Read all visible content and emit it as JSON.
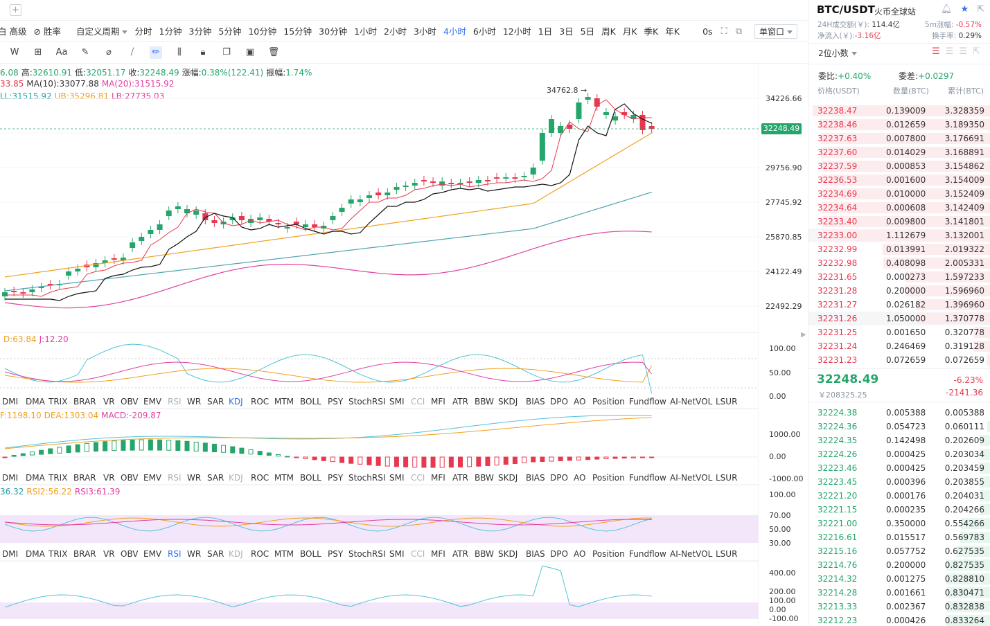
{
  "period_bar": {
    "advanced": "高级",
    "winrate": "胜率",
    "custom_period": "自定义周期",
    "periods": [
      "分时",
      "1分钟",
      "3分钟",
      "5分钟",
      "10分钟",
      "15分钟",
      "30分钟",
      "1小时",
      "2小时",
      "3小时",
      "4小时",
      "6小时",
      "12小时",
      "1日",
      "3日",
      "5日",
      "周K",
      "月K",
      "季K",
      "年K"
    ],
    "active_period": "4小时",
    "countdown": "0s",
    "single_window": "单窗口"
  },
  "ohlc": {
    "open_partial": "6.08",
    "high_label": "高:",
    "high": "32610.91",
    "low_label": "低:",
    "low": "32051.17",
    "close_label": "收:",
    "close": "32248.49",
    "change_label": "涨幅:",
    "change": "0.38%(122.41)",
    "amp_label": "振幅:",
    "amp": "1.74%"
  },
  "ma_legend": {
    "ma5_partial": "33.85",
    "ma10": "MA(10):33077.88",
    "ma20": "MA(20):31515.92"
  },
  "boll_legend": {
    "mid": "LL:31515.92",
    "ub": "UB:35296.81",
    "lb": "LB:27735.03"
  },
  "price_axis": [
    "34226.66",
    "29756.90",
    "27745.92",
    "25870.85",
    "24122.49",
    "22492.29"
  ],
  "current_price_tag": "32248.49",
  "high_marker": "34762.8",
  "kdj_legend": {
    "d": "D:63.84",
    "j": "J:12.20"
  },
  "kdj_axis": [
    "100.00",
    "50.00",
    "0.00"
  ],
  "macd_legend": {
    "dif": "F:1198.10",
    "dea": "DEA:1303.04",
    "macd": "MACD:-209.87"
  },
  "macd_axis": [
    "1000.00",
    "0.00",
    "-1000.00"
  ],
  "rsi_legend": {
    "rsi1": "36.32",
    "rsi2": "RSI2:56.22",
    "rsi3": "RSI3:61.39"
  },
  "rsi_axis": [
    "100.00",
    "70.00",
    "50.00",
    "30.00"
  ],
  "cci_axis": [
    "400.00",
    "200.00",
    "100.00",
    "0.00",
    "-100.00"
  ],
  "indicator_tabs": [
    "DMI",
    "DMA",
    "TRIX",
    "BRAR",
    "VR",
    "OBV",
    "EMV",
    "RSI",
    "WR",
    "SAR",
    "KDJ",
    "ROC",
    "MTM",
    "BOLL",
    "PSY",
    "StochRSI",
    "SMI",
    "CCI",
    "MFI",
    "ATR",
    "BBW",
    "SKDJ",
    "BIAS",
    "DPO",
    "AO",
    "Position",
    "Fundflow",
    "AI-NetVOL",
    "LSUR"
  ],
  "sidebar": {
    "pair": "BTC/USDT",
    "exchange": "火币全球站",
    "vol24_label": "24H成交额(￥):",
    "vol24": "114.4亿",
    "amp5_label": "5m涨幅:",
    "amp5": "-0.57%",
    "netflow_label": "净流入(￥):",
    "netflow": "-3.16亿",
    "turnover_label": "换手率:",
    "turnover": "0.29%",
    "decimals": "2位小数",
    "ratio_label": "委比:",
    "ratio": "+0.40%",
    "diff_label": "委差:",
    "diff": "+0.0297",
    "col_price": "价格(USDT)",
    "col_qty": "数量(BTC)",
    "col_total": "累计(BTC)",
    "asks": [
      {
        "p": "32238.47",
        "q": "0.139009",
        "t": "3.328359"
      },
      {
        "p": "32238.46",
        "q": "0.012659",
        "t": "3.189350"
      },
      {
        "p": "32237.63",
        "q": "0.007800",
        "t": "3.176691"
      },
      {
        "p": "32237.60",
        "q": "0.014029",
        "t": "3.168891"
      },
      {
        "p": "32237.59",
        "q": "0.000853",
        "t": "3.154862"
      },
      {
        "p": "32236.53",
        "q": "0.001600",
        "t": "3.154009"
      },
      {
        "p": "32234.69",
        "q": "0.010000",
        "t": "3.152409"
      },
      {
        "p": "32234.64",
        "q": "0.000608",
        "t": "3.142409"
      },
      {
        "p": "32233.40",
        "q": "0.009800",
        "t": "3.141801"
      },
      {
        "p": "32233.00",
        "q": "1.112679",
        "t": "3.132001"
      },
      {
        "p": "32232.99",
        "q": "0.013991",
        "t": "2.019322"
      },
      {
        "p": "32232.98",
        "q": "0.408098",
        "t": "2.005331"
      },
      {
        "p": "32231.65",
        "q": "0.000273",
        "t": "1.597233"
      },
      {
        "p": "32231.28",
        "q": "0.200000",
        "t": "1.596960"
      },
      {
        "p": "32231.27",
        "q": "0.026182",
        "t": "1.396960"
      },
      {
        "p": "32231.26",
        "q": "1.050000",
        "t": "1.370778"
      },
      {
        "p": "32231.25",
        "q": "0.001650",
        "t": "0.320778"
      },
      {
        "p": "32231.24",
        "q": "0.246469",
        "t": "0.319128"
      },
      {
        "p": "32231.23",
        "q": "0.072659",
        "t": "0.072659"
      }
    ],
    "last_price": "32248.49",
    "last_cny": "￥208325.25",
    "last_pct": "-6.23%",
    "last_chg": "-2141.36",
    "bids": [
      {
        "p": "32224.38",
        "q": "0.005388",
        "t": "0.005388"
      },
      {
        "p": "32224.36",
        "q": "0.054723",
        "t": "0.060111"
      },
      {
        "p": "32224.35",
        "q": "0.142498",
        "t": "0.202609"
      },
      {
        "p": "32224.26",
        "q": "0.000425",
        "t": "0.203034"
      },
      {
        "p": "32223.46",
        "q": "0.000425",
        "t": "0.203459"
      },
      {
        "p": "32223.45",
        "q": "0.000396",
        "t": "0.203855"
      },
      {
        "p": "32221.20",
        "q": "0.000176",
        "t": "0.204031"
      },
      {
        "p": "32221.15",
        "q": "0.000235",
        "t": "0.204266"
      },
      {
        "p": "32221.00",
        "q": "0.350000",
        "t": "0.554266"
      },
      {
        "p": "32216.61",
        "q": "0.015517",
        "t": "0.569783"
      },
      {
        "p": "32215.16",
        "q": "0.057752",
        "t": "0.627535"
      },
      {
        "p": "32214.76",
        "q": "0.200000",
        "t": "0.827535"
      },
      {
        "p": "32214.32",
        "q": "0.001275",
        "t": "0.828810"
      },
      {
        "p": "32214.28",
        "q": "0.001661",
        "t": "0.830471"
      },
      {
        "p": "32213.33",
        "q": "0.002367",
        "t": "0.832838"
      },
      {
        "p": "32212.23",
        "q": "0.000426",
        "t": "0.833264"
      }
    ]
  },
  "colors": {
    "up": "#24a66b",
    "down": "#e8384f",
    "accent": "#2f6ff5",
    "ma5": "#f0a020",
    "ma10": "#e8384f",
    "ma20": "#111111",
    "boll_mid": "#4fa3b0",
    "lb": "#e040a0"
  }
}
